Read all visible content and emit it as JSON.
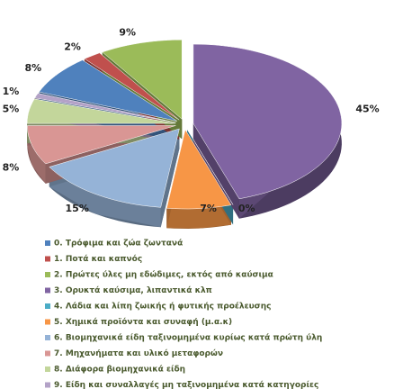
{
  "chart_data": {
    "type": "pie3d",
    "categories": [
      "0. Τρόφιμα και ζώα ζωντανά",
      "1. Ποτά και καπνός",
      "2. Πρώτες ύλες μη εδώδιμες, εκτός από καύσιμα",
      "3. Ορυκτά καύσιμα, λιπαντικά κλπ",
      "4. Λάδια και λίπη ζωικής ή φυτικής προέλευσης",
      "5. Χημικά προϊόντα και συναφή (μ.α.κ)",
      "6. Βιομηχανικά είδη ταξινομημένα κυρίως κατά πρώτη ύλη",
      "7. Μηχανήματα και υλικό μεταφορών",
      "8. Διάφορα βιομηχανικά είδη",
      "9. Είδη και συναλλαγές μη ταξινομημένα κατά  κατηγορίες"
    ],
    "values": [
      8,
      2,
      9,
      45,
      0,
      7,
      15,
      8,
      5,
      1
    ],
    "value_labels": [
      "8%",
      "2%",
      "9%",
      "45%",
      "0%",
      "7%",
      "15%",
      "8%",
      "5%",
      "1%"
    ],
    "colors": [
      "#4f81bd",
      "#c0504d",
      "#9bbb59",
      "#8064a2",
      "#4bacc6",
      "#f79646",
      "#95b3d7",
      "#d99694",
      "#c3d69b",
      "#b3a2c7"
    ]
  }
}
